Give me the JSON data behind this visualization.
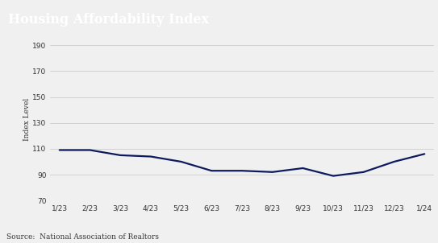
{
  "title": "Housing Affordability Index",
  "title_bg_color": "#555555",
  "title_text_color": "#ffffff",
  "ylabel": "Index Level",
  "source_text": "Source:  National Association of Realtors",
  "line_color": "#0d1b5e",
  "line_width": 1.6,
  "bg_color": "#f0f0f0",
  "plot_bg_color": "#f0f0f0",
  "grid_color": "#cccccc",
  "x_labels": [
    "1/23",
    "2/23",
    "3/23",
    "4/23",
    "5/23",
    "6/23",
    "7/23",
    "8/23",
    "9/23",
    "10/23",
    "11/23",
    "12/23",
    "1/24"
  ],
  "y_values": [
    109,
    109,
    105,
    104,
    100,
    93,
    93,
    92,
    95,
    89,
    92,
    100,
    106
  ],
  "ylim": [
    70,
    195
  ],
  "yticks": [
    70,
    90,
    110,
    130,
    150,
    170,
    190
  ]
}
